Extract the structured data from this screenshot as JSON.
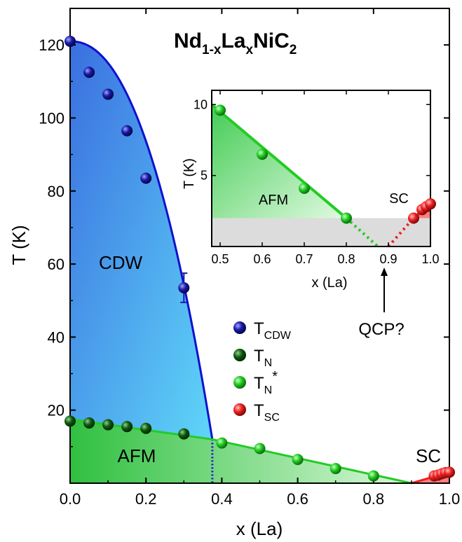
{
  "chart_data": {
    "type": "scatter",
    "title": "Nd1-xLaxNiC2",
    "title_parts": {
      "base1": "Nd",
      "sub1": "1-x",
      "base2": "La",
      "sub2": "x",
      "base3": "NiC",
      "sub3": "2"
    },
    "xlabel": "x (La)",
    "ylabel": "T (K)",
    "xlim": [
      0.0,
      1.0
    ],
    "ylim": [
      0,
      130
    ],
    "xticks": [
      "0.0",
      "0.2",
      "0.4",
      "0.6",
      "0.8",
      "1.0"
    ],
    "yticks": [
      "20",
      "40",
      "60",
      "80",
      "100",
      "120"
    ],
    "regions": {
      "cdw": "CDW",
      "afm": "AFM",
      "sc": "SC"
    },
    "legend": [
      {
        "key": "cdw",
        "base": "T",
        "sub": "CDW",
        "sup": "",
        "color": "#1a1aa8"
      },
      {
        "key": "n",
        "base": "T",
        "sub": "N",
        "sup": "",
        "color": "#0d5c0d"
      },
      {
        "key": "nstar",
        "base": "T",
        "sub": "N",
        "sup": "*",
        "color": "#22cc22"
      },
      {
        "key": "sc",
        "base": "T",
        "sub": "SC",
        "sup": "",
        "color": "#ee2020"
      }
    ],
    "series": [
      {
        "name": "TCDW",
        "color": "#1a1aa8",
        "x": [
          0.0,
          0.05,
          0.1,
          0.15,
          0.2,
          0.3
        ],
        "y": [
          121.0,
          112.5,
          106.5,
          96.5,
          83.5,
          53.5
        ],
        "yerr": [
          0,
          0,
          0,
          0,
          0,
          4.0
        ]
      },
      {
        "name": "TN",
        "color": "#0d5c0d",
        "x": [
          0.0,
          0.05,
          0.1,
          0.15,
          0.2,
          0.3
        ],
        "y": [
          17.0,
          16.5,
          16.0,
          15.5,
          15.0,
          13.5
        ]
      },
      {
        "name": "TN*",
        "color": "#22cc22",
        "x": [
          0.4,
          0.5,
          0.6,
          0.7,
          0.8
        ],
        "y": [
          11.0,
          9.5,
          6.5,
          4.0,
          2.0
        ]
      },
      {
        "name": "TSC",
        "color": "#ee2020",
        "x": [
          0.96,
          0.97,
          0.98,
          0.99,
          1.0
        ],
        "y": [
          2.0,
          2.2,
          2.6,
          2.9,
          3.0
        ]
      }
    ],
    "boundaries": {
      "cdw": {
        "x0": 0.0,
        "y0": 121.0,
        "x1": 0.375,
        "y1": 12.0,
        "color": "#1010d0"
      },
      "cdw_dotted": {
        "x": 0.375,
        "y0": 12.0,
        "y1": 0
      },
      "afm": {
        "x": [
          0.0,
          0.375,
          0.9
        ],
        "y": [
          17.5,
          12.0,
          0
        ],
        "color": "#22cc22"
      },
      "sc": {
        "x": [
          0.9,
          1.0
        ],
        "y": [
          0,
          3.0
        ],
        "color": "#ee2020"
      }
    },
    "inset": {
      "xlabel": "x (La)",
      "ylabel": "T (K)",
      "xlim": [
        0.48,
        1.0
      ],
      "ylim": [
        0,
        11
      ],
      "xticks": [
        "0.5",
        "0.6",
        "0.7",
        "0.8",
        "0.9",
        "1.0"
      ],
      "yticks": [
        "5",
        "10"
      ],
      "labels": {
        "afm": "AFM",
        "sc": "SC"
      },
      "gray_band_below": 2.0,
      "series": [
        {
          "name": "TN*",
          "color": "#22cc22",
          "x": [
            0.5,
            0.6,
            0.7,
            0.8
          ],
          "y": [
            9.6,
            6.5,
            4.1,
            2.0
          ]
        },
        {
          "name": "TSC",
          "color": "#ee2020",
          "x": [
            0.96,
            0.98,
            0.99,
            1.0
          ],
          "y": [
            2.0,
            2.6,
            2.8,
            3.0
          ]
        }
      ],
      "afm_line": {
        "x": [
          0.48,
          0.8
        ],
        "y": [
          10.0,
          2.0
        ]
      },
      "afm_dotted": {
        "x": [
          0.8,
          0.875
        ],
        "y": [
          2.0,
          0
        ]
      },
      "sc_line": {
        "x": [
          0.9,
          1.0
        ],
        "y": [
          0,
          3.0
        ]
      },
      "annotation": {
        "text": "QCP?",
        "x": 0.9
      }
    }
  }
}
